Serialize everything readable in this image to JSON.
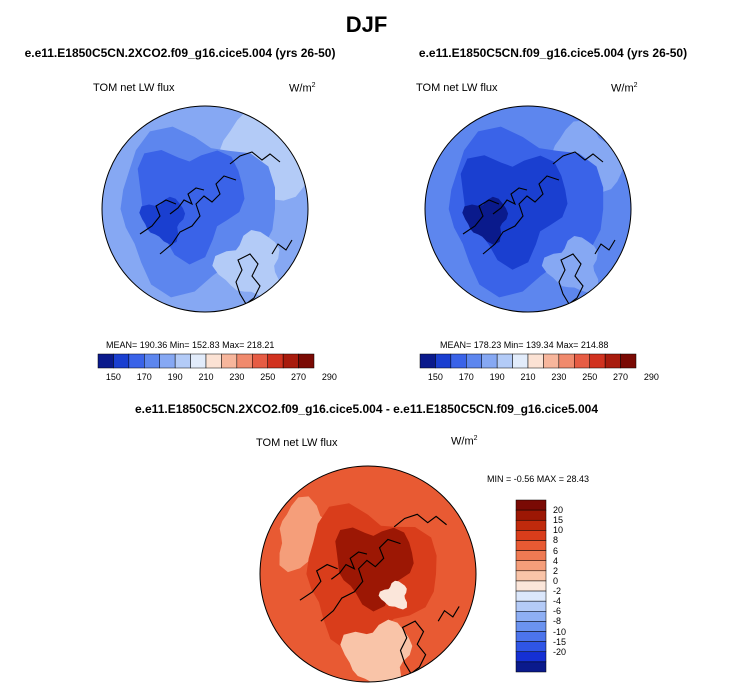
{
  "page": {
    "title": "DJF"
  },
  "panels": [
    {
      "case_title": "e.e11.E1850C5CN.2XCO2.f09_g16.cice5.004 (yrs 26-50)",
      "variable": "TOM net LW flux",
      "units": "W/m",
      "units_exp": "2",
      "stats": "MEAN= 190.36  Min= 152.83  Max= 218.21"
    },
    {
      "case_title": "e.e11.E1850C5CN.f09_g16.cice5.004 (yrs 26-50)",
      "variable": "TOM net LW flux",
      "units": "W/m",
      "units_exp": "2",
      "stats": "MEAN= 178.23  Min= 139.34  Max= 214.88"
    },
    {
      "case_title": "e.e11.E1850C5CN.2XCO2.f09_g16.cice5.004 - e.e11.E1850C5CN.f09_g16.cice5.004",
      "variable": "TOM net LW flux",
      "units": "W/m",
      "units_exp": "2",
      "stats": "MIN =  -0.56 MAX =  28.43"
    }
  ],
  "colors": {
    "abs_scale": [
      "#0a1a8c",
      "#1a3fd0",
      "#3a63e8",
      "#5d86ee",
      "#86a8f3",
      "#b3cbf7",
      "#e2ecfb",
      "#fbe2d4",
      "#f7b69c",
      "#f08a6d",
      "#e65c44",
      "#d1321f",
      "#a81b0d",
      "#7a0a04"
    ],
    "diff_scale": [
      "#0a1a8c",
      "#1530d4",
      "#2f55e6",
      "#4c74ec",
      "#6b93f0",
      "#8eaff4",
      "#b4cbf7",
      "#dbe7fb",
      "#fbe6da",
      "#f9c4a8",
      "#f59e7a",
      "#ef7a53",
      "#e85a33",
      "#d93d1b",
      "#c02a0c",
      "#9c1704",
      "#7a0a04"
    ]
  },
  "chart_data": [
    {
      "type": "contour-map",
      "projection": "north-polar-stereographic",
      "title": "e.e11.E1850C5CN.2XCO2.f09_g16.cice5.004 (yrs 26-50)",
      "variable": "TOM net LW flux",
      "units": "W/m2",
      "mean": 190.36,
      "min": 152.83,
      "max": 218.21,
      "colorbar_ticks": [
        "150",
        "170",
        "190",
        "210",
        "230",
        "250",
        "270",
        "290"
      ]
    },
    {
      "type": "contour-map",
      "projection": "north-polar-stereographic",
      "title": "e.e11.E1850C5CN.f09_g16.cice5.004 (yrs 26-50)",
      "variable": "TOM net LW flux",
      "units": "W/m2",
      "mean": 178.23,
      "min": 139.34,
      "max": 214.88,
      "colorbar_ticks": [
        "150",
        "170",
        "190",
        "210",
        "230",
        "250",
        "270",
        "290"
      ]
    },
    {
      "type": "contour-map",
      "projection": "north-polar-stereographic",
      "title": "e.e11.E1850C5CN.2XCO2.f09_g16.cice5.004 - e.e11.E1850C5CN.f09_g16.cice5.004",
      "variable": "TOM net LW flux",
      "units": "W/m2",
      "min": -0.56,
      "max": 28.43,
      "colorbar_ticks": [
        "20",
        "15",
        "10",
        "8",
        "6",
        "4",
        "2",
        "0",
        "-2",
        "-4",
        "-6",
        "-8",
        "-10",
        "-15",
        "-20"
      ]
    }
  ]
}
